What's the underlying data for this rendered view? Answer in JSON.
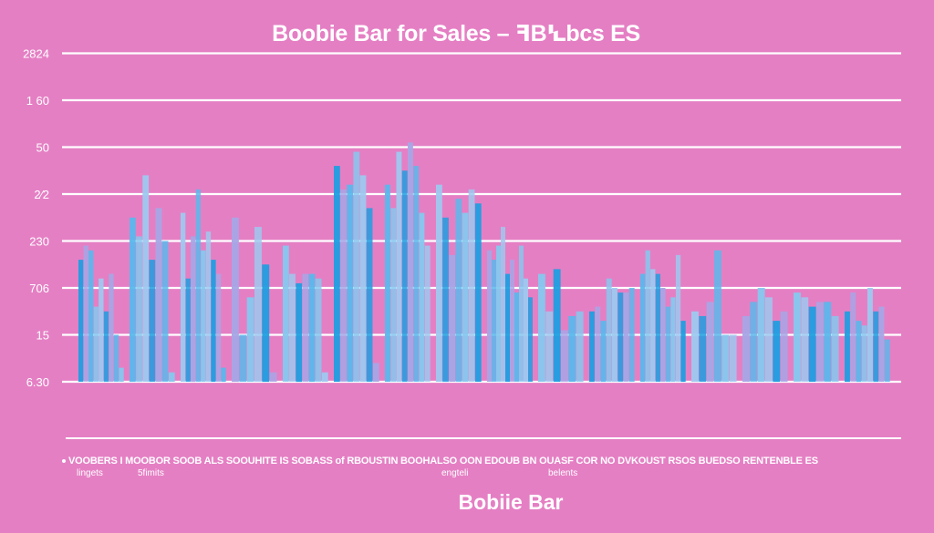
{
  "chart_data": {
    "type": "bar",
    "title": "Boobie Bar for Sales – ꟻBꝆbcs ES",
    "xlabel": "Bobiie Bar",
    "ylabel": "",
    "ylim": [
      0,
      7
    ],
    "grid": true,
    "y_ticks": [
      "6.30",
      "15",
      "706",
      "230",
      "2⁄2",
      "50",
      "1 60",
      "2824"
    ],
    "legend_text": "VOOBERS I MOOBOR SOOB ALS SOOUHITE IS SOBASS of RBOUSTIN BOOHALSO OON EDOUB BN OUASF COR NO DVKOUST RSOS BUEDSO RENTENBLE ES",
    "legend_sub_labels": [
      "lingets",
      "5fimits",
      "engteli",
      "belents"
    ],
    "colors": [
      "#1f9fe0",
      "#5ab8ec",
      "#9ec9f0",
      "#a7a6e6",
      "#86c8ee"
    ],
    "groups": [
      {
        "name": "g1",
        "values": [
          2.6,
          2.9,
          2.8,
          1.6,
          2.2,
          1.5,
          2.3,
          1.0,
          0.3
        ]
      },
      {
        "name": "g2",
        "values": [
          3.5,
          3.1,
          4.4,
          2.6,
          3.7,
          3.0,
          0.2
        ]
      },
      {
        "name": "g3",
        "values": [
          3.6,
          2.2,
          3.1,
          4.1,
          2.8,
          3.2,
          2.6,
          2.3,
          0.3
        ]
      },
      {
        "name": "g4",
        "values": [
          3.5,
          1.0,
          1.8,
          3.3,
          2.5,
          0.2
        ]
      },
      {
        "name": "g5",
        "values": [
          2.9,
          2.3,
          2.1,
          2.3,
          2.3,
          2.2,
          0.2
        ]
      },
      {
        "name": "g6",
        "values": [
          4.6,
          4.1,
          4.2,
          4.9,
          4.4,
          3.7,
          0.4
        ]
      },
      {
        "name": "g7",
        "values": [
          4.2,
          3.7,
          4.9,
          4.5,
          5.1,
          4.6,
          3.6,
          2.9
        ]
      },
      {
        "name": "g8",
        "values": [
          4.2,
          3.5,
          2.7,
          3.9,
          3.6,
          4.1,
          3.8
        ]
      },
      {
        "name": "g9",
        "values": [
          2.8,
          2.6,
          2.9,
          3.3,
          2.3,
          2.6,
          1.9,
          2.9,
          2.2,
          1.8
        ]
      },
      {
        "name": "g10",
        "values": [
          2.3,
          1.5,
          2.4,
          1.1,
          1.4,
          1.5
        ]
      },
      {
        "name": "g11",
        "values": [
          1.5,
          1.6,
          1.3,
          2.2,
          2.0,
          1.9,
          1.9,
          2.0
        ]
      },
      {
        "name": "g12",
        "values": [
          2.3,
          2.8,
          2.4,
          2.3,
          2.0,
          1.6,
          1.8,
          2.7,
          1.3
        ]
      },
      {
        "name": "g13",
        "values": [
          1.5,
          1.4,
          1.7,
          2.8,
          1.0,
          1.0
        ]
      },
      {
        "name": "g14",
        "values": [
          1.4,
          1.7,
          2.0,
          1.8,
          1.3,
          1.5
        ]
      },
      {
        "name": "g15",
        "values": [
          1.9,
          1.8,
          1.6,
          1.7,
          1.7,
          1.4
        ]
      },
      {
        "name": "g16",
        "values": [
          1.5,
          1.9,
          1.3,
          1.2,
          2.0,
          1.5,
          1.6,
          0.9
        ]
      }
    ]
  }
}
